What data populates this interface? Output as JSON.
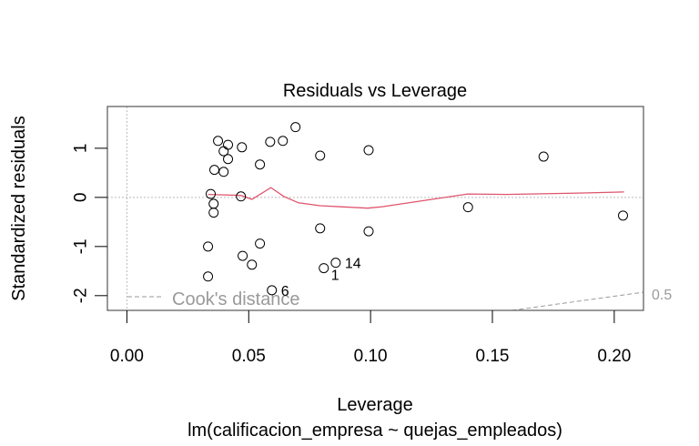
{
  "chart_data": {
    "type": "scatter",
    "title": "Residuals vs Leverage",
    "xlabel": "Leverage",
    "subtitle": "lm(calificacion_empresa ~ quejas_empleados)",
    "ylabel": "Standardized residuals",
    "xlim": [
      -0.008,
      0.212
    ],
    "ylim": [
      -2.3,
      1.85
    ],
    "x_ticks": [
      0.0,
      0.05,
      0.1,
      0.15,
      0.2
    ],
    "x_tick_labels": [
      "0.00",
      "0.05",
      "0.10",
      "0.15",
      "0.20"
    ],
    "y_ticks": [
      -2,
      -1,
      0,
      1
    ],
    "y_tick_labels": [
      "-2",
      "-1",
      "0",
      "1"
    ],
    "grid": false,
    "reference_lines": {
      "h": 0,
      "v": 0
    },
    "points": [
      {
        "x": 0.0374,
        "y": 1.15
      },
      {
        "x": 0.0415,
        "y": 1.07
      },
      {
        "x": 0.0397,
        "y": 0.94
      },
      {
        "x": 0.0415,
        "y": 0.78
      },
      {
        "x": 0.0472,
        "y": 1.02
      },
      {
        "x": 0.0359,
        "y": 0.56
      },
      {
        "x": 0.0397,
        "y": 0.52
      },
      {
        "x": 0.0546,
        "y": 0.67
      },
      {
        "x": 0.0588,
        "y": 1.13
      },
      {
        "x": 0.064,
        "y": 1.15
      },
      {
        "x": 0.0692,
        "y": 1.43
      },
      {
        "x": 0.0793,
        "y": 0.85
      },
      {
        "x": 0.0992,
        "y": 0.96
      },
      {
        "x": 0.171,
        "y": 0.83
      },
      {
        "x": 0.0344,
        "y": 0.07
      },
      {
        "x": 0.0468,
        "y": 0.02
      },
      {
        "x": 0.0356,
        "y": -0.13
      },
      {
        "x": 0.0356,
        "y": -0.31
      },
      {
        "x": 0.0793,
        "y": -0.63
      },
      {
        "x": 0.0992,
        "y": -0.69
      },
      {
        "x": 0.14,
        "y": -0.2
      },
      {
        "x": 0.2036,
        "y": -0.37
      },
      {
        "x": 0.0333,
        "y": -1.0
      },
      {
        "x": 0.0546,
        "y": -0.94
      },
      {
        "x": 0.0475,
        "y": -1.19
      },
      {
        "x": 0.0513,
        "y": -1.37
      },
      {
        "x": 0.0333,
        "y": -1.61
      },
      {
        "x": 0.0595,
        "y": -1.89,
        "label": "6"
      },
      {
        "x": 0.0808,
        "y": -1.44,
        "label": "1"
      },
      {
        "x": 0.0857,
        "y": -1.33,
        "label": "14"
      }
    ],
    "smooth_line": {
      "color": "#DF536B",
      "x": [
        0.0333,
        0.0468,
        0.0513,
        0.0591,
        0.0644,
        0.0704,
        0.0793,
        0.0988,
        0.1048,
        0.14,
        0.1557,
        0.1875,
        0.204
      ],
      "y": [
        0.06,
        0.04,
        -0.04,
        0.2,
        0.02,
        -0.11,
        -0.17,
        -0.22,
        -0.19,
        0.07,
        0.06,
        0.09,
        0.11
      ]
    },
    "cooks_distance": {
      "legend_label": "Cook's distance",
      "contour_label": "0.5",
      "contour_x": [
        0.158,
        0.212
      ],
      "contour_y": [
        -2.3,
        -1.93
      ]
    }
  }
}
